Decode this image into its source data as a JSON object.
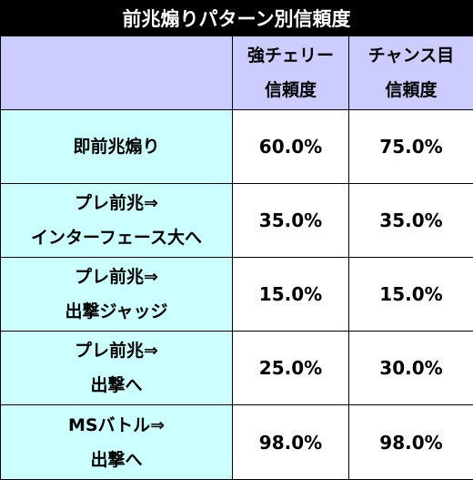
{
  "title": "前兆煽りパターン別信頼度",
  "columns": [
    {
      "line1": "強チェリー",
      "line2": "信頼度"
    },
    {
      "line1": "チャンス目",
      "line2": "信頼度"
    }
  ],
  "rows": [
    {
      "label_line1": "即前兆煽り",
      "label_line2": "",
      "cherry": "60.0%",
      "chance": "75.0%"
    },
    {
      "label_line1": "プレ前兆⇒",
      "label_line2": "インターフェース大へ",
      "cherry": "35.0%",
      "chance": "35.0%"
    },
    {
      "label_line1": "プレ前兆⇒",
      "label_line2": "出撃ジャッジ",
      "cherry": "15.0%",
      "chance": "15.0%"
    },
    {
      "label_line1": "プレ前兆⇒",
      "label_line2": "出撃へ",
      "cherry": "25.0%",
      "chance": "30.0%"
    },
    {
      "label_line1": "MSバトル⇒",
      "label_line2": "出撃へ",
      "cherry": "98.0%",
      "chance": "98.0%"
    }
  ],
  "colors": {
    "title_bg": "#000000",
    "header_bg": "#ccccff",
    "label_bg": "#ccffff",
    "value_bg": "#ffffff"
  }
}
